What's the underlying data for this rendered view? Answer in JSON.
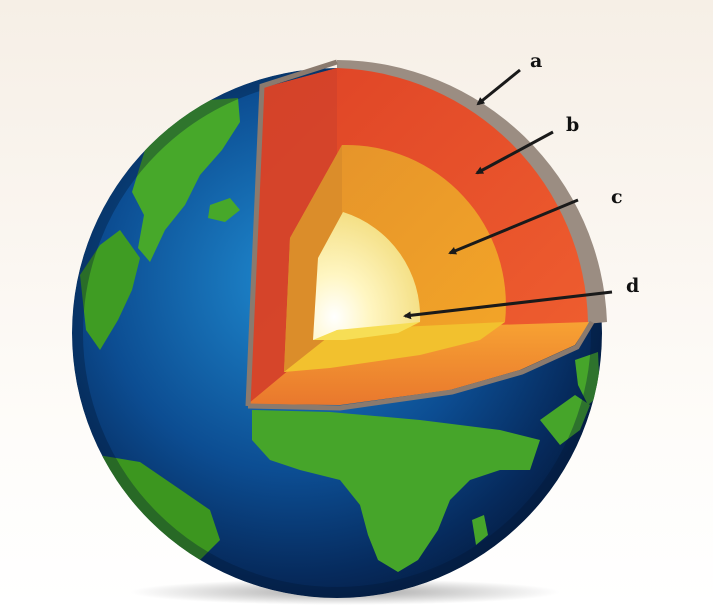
{
  "diagram": {
    "labels": [
      {
        "id": "a",
        "text": "a"
      },
      {
        "id": "b",
        "text": "b"
      },
      {
        "id": "c",
        "text": "c"
      },
      {
        "id": "d",
        "text": "d"
      }
    ]
  },
  "colors": {
    "ocean": "#0b3e7e",
    "land": "#3f9c23",
    "crust": "#9a8c80",
    "mantle": "#e9552a",
    "outer_core": "#f3a223",
    "inner_core": "#fff3a6",
    "arrow": "#1a1a1a"
  }
}
